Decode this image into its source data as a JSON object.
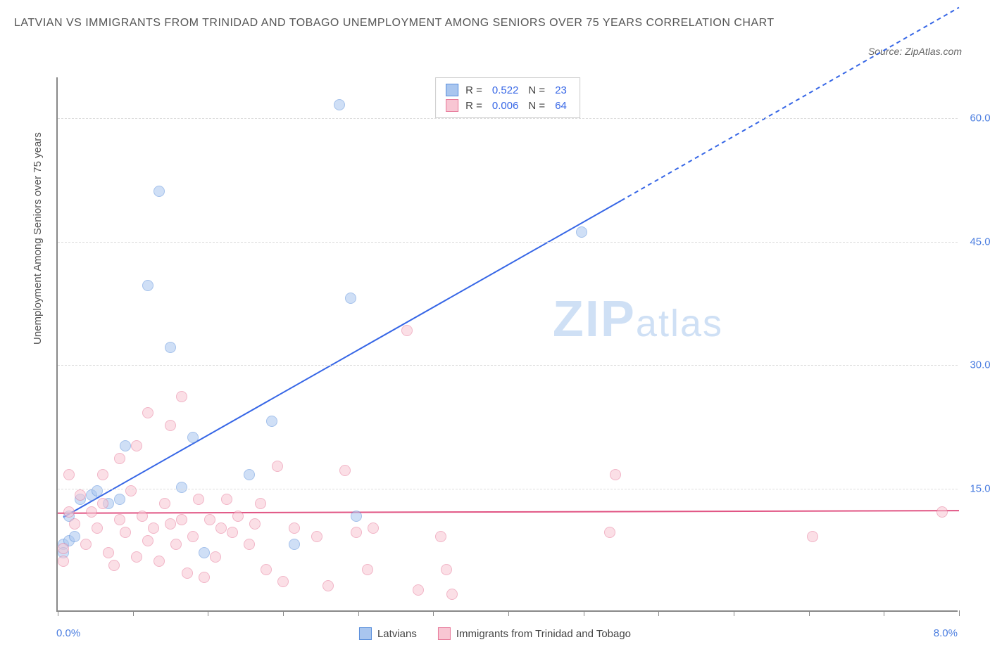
{
  "title": "LATVIAN VS IMMIGRANTS FROM TRINIDAD AND TOBAGO UNEMPLOYMENT AMONG SENIORS OVER 75 YEARS CORRELATION CHART",
  "source_label": "Source: ZipAtlas.com",
  "watermark": {
    "part1": "ZIP",
    "part2": "atlas"
  },
  "y_axis_label": "Unemployment Among Seniors over 75 years",
  "chart": {
    "type": "scatter",
    "xlim": [
      0,
      8
    ],
    "ylim": [
      0,
      65
    ],
    "x_min_label": "0.0%",
    "x_max_label": "8.0%",
    "x_ticks": [
      0,
      0.67,
      1.33,
      2.0,
      2.67,
      3.33,
      4.0,
      4.67,
      5.33,
      6.0,
      6.67,
      7.33,
      8.0
    ],
    "y_ticks": [
      {
        "v": 15,
        "label": "15.0%"
      },
      {
        "v": 30,
        "label": "30.0%"
      },
      {
        "v": 45,
        "label": "45.0%"
      },
      {
        "v": 60,
        "label": "60.0%"
      }
    ],
    "background_color": "#ffffff",
    "grid_color": "#dddddd",
    "marker_radius": 8,
    "marker_opacity": 0.55,
    "series": [
      {
        "key": "latvians",
        "label": "Latvians",
        "color_fill": "#a9c6ef",
        "color_stroke": "#5a8fdc",
        "R": "0.522",
        "N": "23",
        "trend": {
          "x1": 0.05,
          "y1": 11.5,
          "x2": 5.0,
          "y2": 50.0,
          "dash_to_x": 8.0,
          "dash_to_y": 73.5,
          "color": "#3666e6",
          "width": 2
        },
        "points": [
          [
            0.05,
            8.0
          ],
          [
            0.05,
            7.0
          ],
          [
            0.1,
            8.5
          ],
          [
            0.1,
            11.5
          ],
          [
            0.15,
            9.0
          ],
          [
            0.2,
            13.5
          ],
          [
            0.3,
            14.0
          ],
          [
            0.35,
            14.5
          ],
          [
            0.45,
            13.0
          ],
          [
            0.55,
            13.5
          ],
          [
            0.6,
            20.0
          ],
          [
            0.8,
            39.5
          ],
          [
            0.9,
            51.0
          ],
          [
            1.0,
            32.0
          ],
          [
            1.1,
            15.0
          ],
          [
            1.2,
            21.0
          ],
          [
            1.3,
            7.0
          ],
          [
            1.7,
            16.5
          ],
          [
            1.9,
            23.0
          ],
          [
            2.1,
            8.0
          ],
          [
            2.5,
            61.5
          ],
          [
            2.6,
            38.0
          ],
          [
            2.65,
            11.5
          ],
          [
            4.65,
            46.0
          ]
        ]
      },
      {
        "key": "trinidad",
        "label": "Immigrants from Trinidad and Tobago",
        "color_fill": "#f8c6d3",
        "color_stroke": "#e77a9a",
        "R": "0.006",
        "N": "64",
        "trend": {
          "x1": 0.0,
          "y1": 12.0,
          "x2": 8.0,
          "y2": 12.3,
          "color": "#e15584",
          "width": 2
        },
        "points": [
          [
            0.05,
            6.0
          ],
          [
            0.05,
            7.5
          ],
          [
            0.1,
            12.0
          ],
          [
            0.1,
            16.5
          ],
          [
            0.15,
            10.5
          ],
          [
            0.2,
            14.0
          ],
          [
            0.25,
            8.0
          ],
          [
            0.3,
            12.0
          ],
          [
            0.35,
            10.0
          ],
          [
            0.4,
            16.5
          ],
          [
            0.4,
            13.0
          ],
          [
            0.45,
            7.0
          ],
          [
            0.5,
            5.5
          ],
          [
            0.55,
            18.5
          ],
          [
            0.55,
            11.0
          ],
          [
            0.6,
            9.5
          ],
          [
            0.65,
            14.5
          ],
          [
            0.7,
            6.5
          ],
          [
            0.7,
            20.0
          ],
          [
            0.75,
            11.5
          ],
          [
            0.8,
            8.5
          ],
          [
            0.8,
            24.0
          ],
          [
            0.85,
            10.0
          ],
          [
            0.9,
            6.0
          ],
          [
            0.95,
            13.0
          ],
          [
            1.0,
            22.5
          ],
          [
            1.0,
            10.5
          ],
          [
            1.05,
            8.0
          ],
          [
            1.1,
            26.0
          ],
          [
            1.1,
            11.0
          ],
          [
            1.15,
            4.5
          ],
          [
            1.2,
            9.0
          ],
          [
            1.25,
            13.5
          ],
          [
            1.3,
            4.0
          ],
          [
            1.35,
            11.0
          ],
          [
            1.4,
            6.5
          ],
          [
            1.45,
            10.0
          ],
          [
            1.5,
            13.5
          ],
          [
            1.55,
            9.5
          ],
          [
            1.6,
            11.5
          ],
          [
            1.7,
            8.0
          ],
          [
            1.75,
            10.5
          ],
          [
            1.8,
            13.0
          ],
          [
            1.85,
            5.0
          ],
          [
            1.95,
            17.5
          ],
          [
            2.0,
            3.5
          ],
          [
            2.1,
            10.0
          ],
          [
            2.3,
            9.0
          ],
          [
            2.4,
            3.0
          ],
          [
            2.55,
            17.0
          ],
          [
            2.65,
            9.5
          ],
          [
            2.75,
            5.0
          ],
          [
            2.8,
            10.0
          ],
          [
            3.1,
            34.0
          ],
          [
            3.2,
            2.5
          ],
          [
            3.4,
            9.0
          ],
          [
            3.45,
            5.0
          ],
          [
            3.5,
            2.0
          ],
          [
            4.9,
            9.5
          ],
          [
            4.95,
            16.5
          ],
          [
            6.7,
            9.0
          ],
          [
            7.85,
            12.0
          ]
        ]
      }
    ],
    "legend_top": {
      "r_label": "R =",
      "n_label": "N ="
    }
  }
}
